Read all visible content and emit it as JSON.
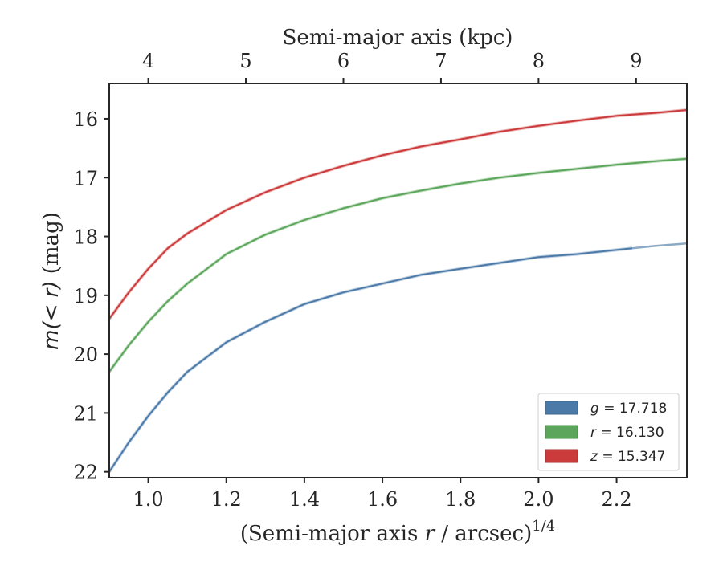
{
  "chart_data": {
    "type": "line",
    "xlabel": "(Semi-major axis r / arcsec)",
    "xlabel_parts": {
      "prefix": "(Semi-major axis ",
      "var": "r",
      "suffix": " / arcsec)",
      "exponent": "1/4"
    },
    "ylabel_parts": {
      "var": "m(< r)",
      "suffix": " (mag)"
    },
    "top_xlabel": "Semi-major axis (kpc)",
    "xlim": [
      0.9,
      2.38
    ],
    "ylim": [
      22.1,
      15.4
    ],
    "x_ticks": [
      1.0,
      1.2,
      1.4,
      1.6,
      1.8,
      2.0,
      2.2
    ],
    "x_tick_labels": [
      "1.0",
      "1.2",
      "1.4",
      "1.6",
      "1.8",
      "2.0",
      "2.2"
    ],
    "y_ticks": [
      16,
      17,
      18,
      19,
      20,
      21,
      22
    ],
    "y_tick_labels": [
      "16",
      "17",
      "18",
      "19",
      "20",
      "21",
      "22"
    ],
    "top_ticks_kpc": [
      4,
      5,
      6,
      7,
      8,
      9
    ],
    "top_tick_labels": [
      "4",
      "5",
      "6",
      "7",
      "8",
      "9"
    ],
    "top_tick_positions_x": [
      1.0,
      1.25,
      1.5,
      1.75,
      2.0,
      2.25
    ],
    "legend": {
      "location": "lower right",
      "entries": [
        {
          "var": "g",
          "text": " = 17.718"
        },
        {
          "var": "r",
          "text": " = 16.130"
        },
        {
          "var": "z",
          "text": " = 15.347"
        }
      ]
    },
    "series": [
      {
        "name": "g = 17.718",
        "color": "#4c7aa8",
        "x": [
          0.9,
          0.95,
          1.0,
          1.05,
          1.1,
          1.2,
          1.3,
          1.4,
          1.5,
          1.6,
          1.7,
          1.8,
          1.9,
          2.0,
          2.1,
          2.24
        ],
        "y": [
          22.0,
          21.5,
          21.05,
          20.65,
          20.3,
          19.8,
          19.45,
          19.15,
          18.95,
          18.8,
          18.65,
          18.55,
          18.45,
          18.35,
          18.3,
          18.2
        ],
        "faded_x": [
          2.24,
          2.3,
          2.38
        ],
        "faded_y": [
          18.2,
          18.16,
          18.12
        ]
      },
      {
        "name": "r = 16.130",
        "color": "#5ba65b",
        "x": [
          0.9,
          0.95,
          1.0,
          1.05,
          1.1,
          1.2,
          1.3,
          1.4,
          1.5,
          1.6,
          1.7,
          1.8,
          1.9,
          2.0,
          2.1,
          2.2,
          2.3,
          2.38
        ],
        "y": [
          20.3,
          19.85,
          19.45,
          19.1,
          18.8,
          18.3,
          17.97,
          17.72,
          17.52,
          17.35,
          17.22,
          17.1,
          17.0,
          16.92,
          16.85,
          16.78,
          16.72,
          16.68
        ]
      },
      {
        "name": "z = 15.347",
        "color": "#cc3b3b",
        "x": [
          0.9,
          0.95,
          1.0,
          1.05,
          1.1,
          1.2,
          1.3,
          1.4,
          1.5,
          1.6,
          1.7,
          1.8,
          1.9,
          2.0,
          2.1,
          2.2,
          2.3,
          2.38
        ],
        "y": [
          19.4,
          18.95,
          18.55,
          18.2,
          17.95,
          17.55,
          17.25,
          17.0,
          16.8,
          16.62,
          16.47,
          16.35,
          16.22,
          16.12,
          16.03,
          15.95,
          15.9,
          15.85
        ]
      }
    ]
  }
}
